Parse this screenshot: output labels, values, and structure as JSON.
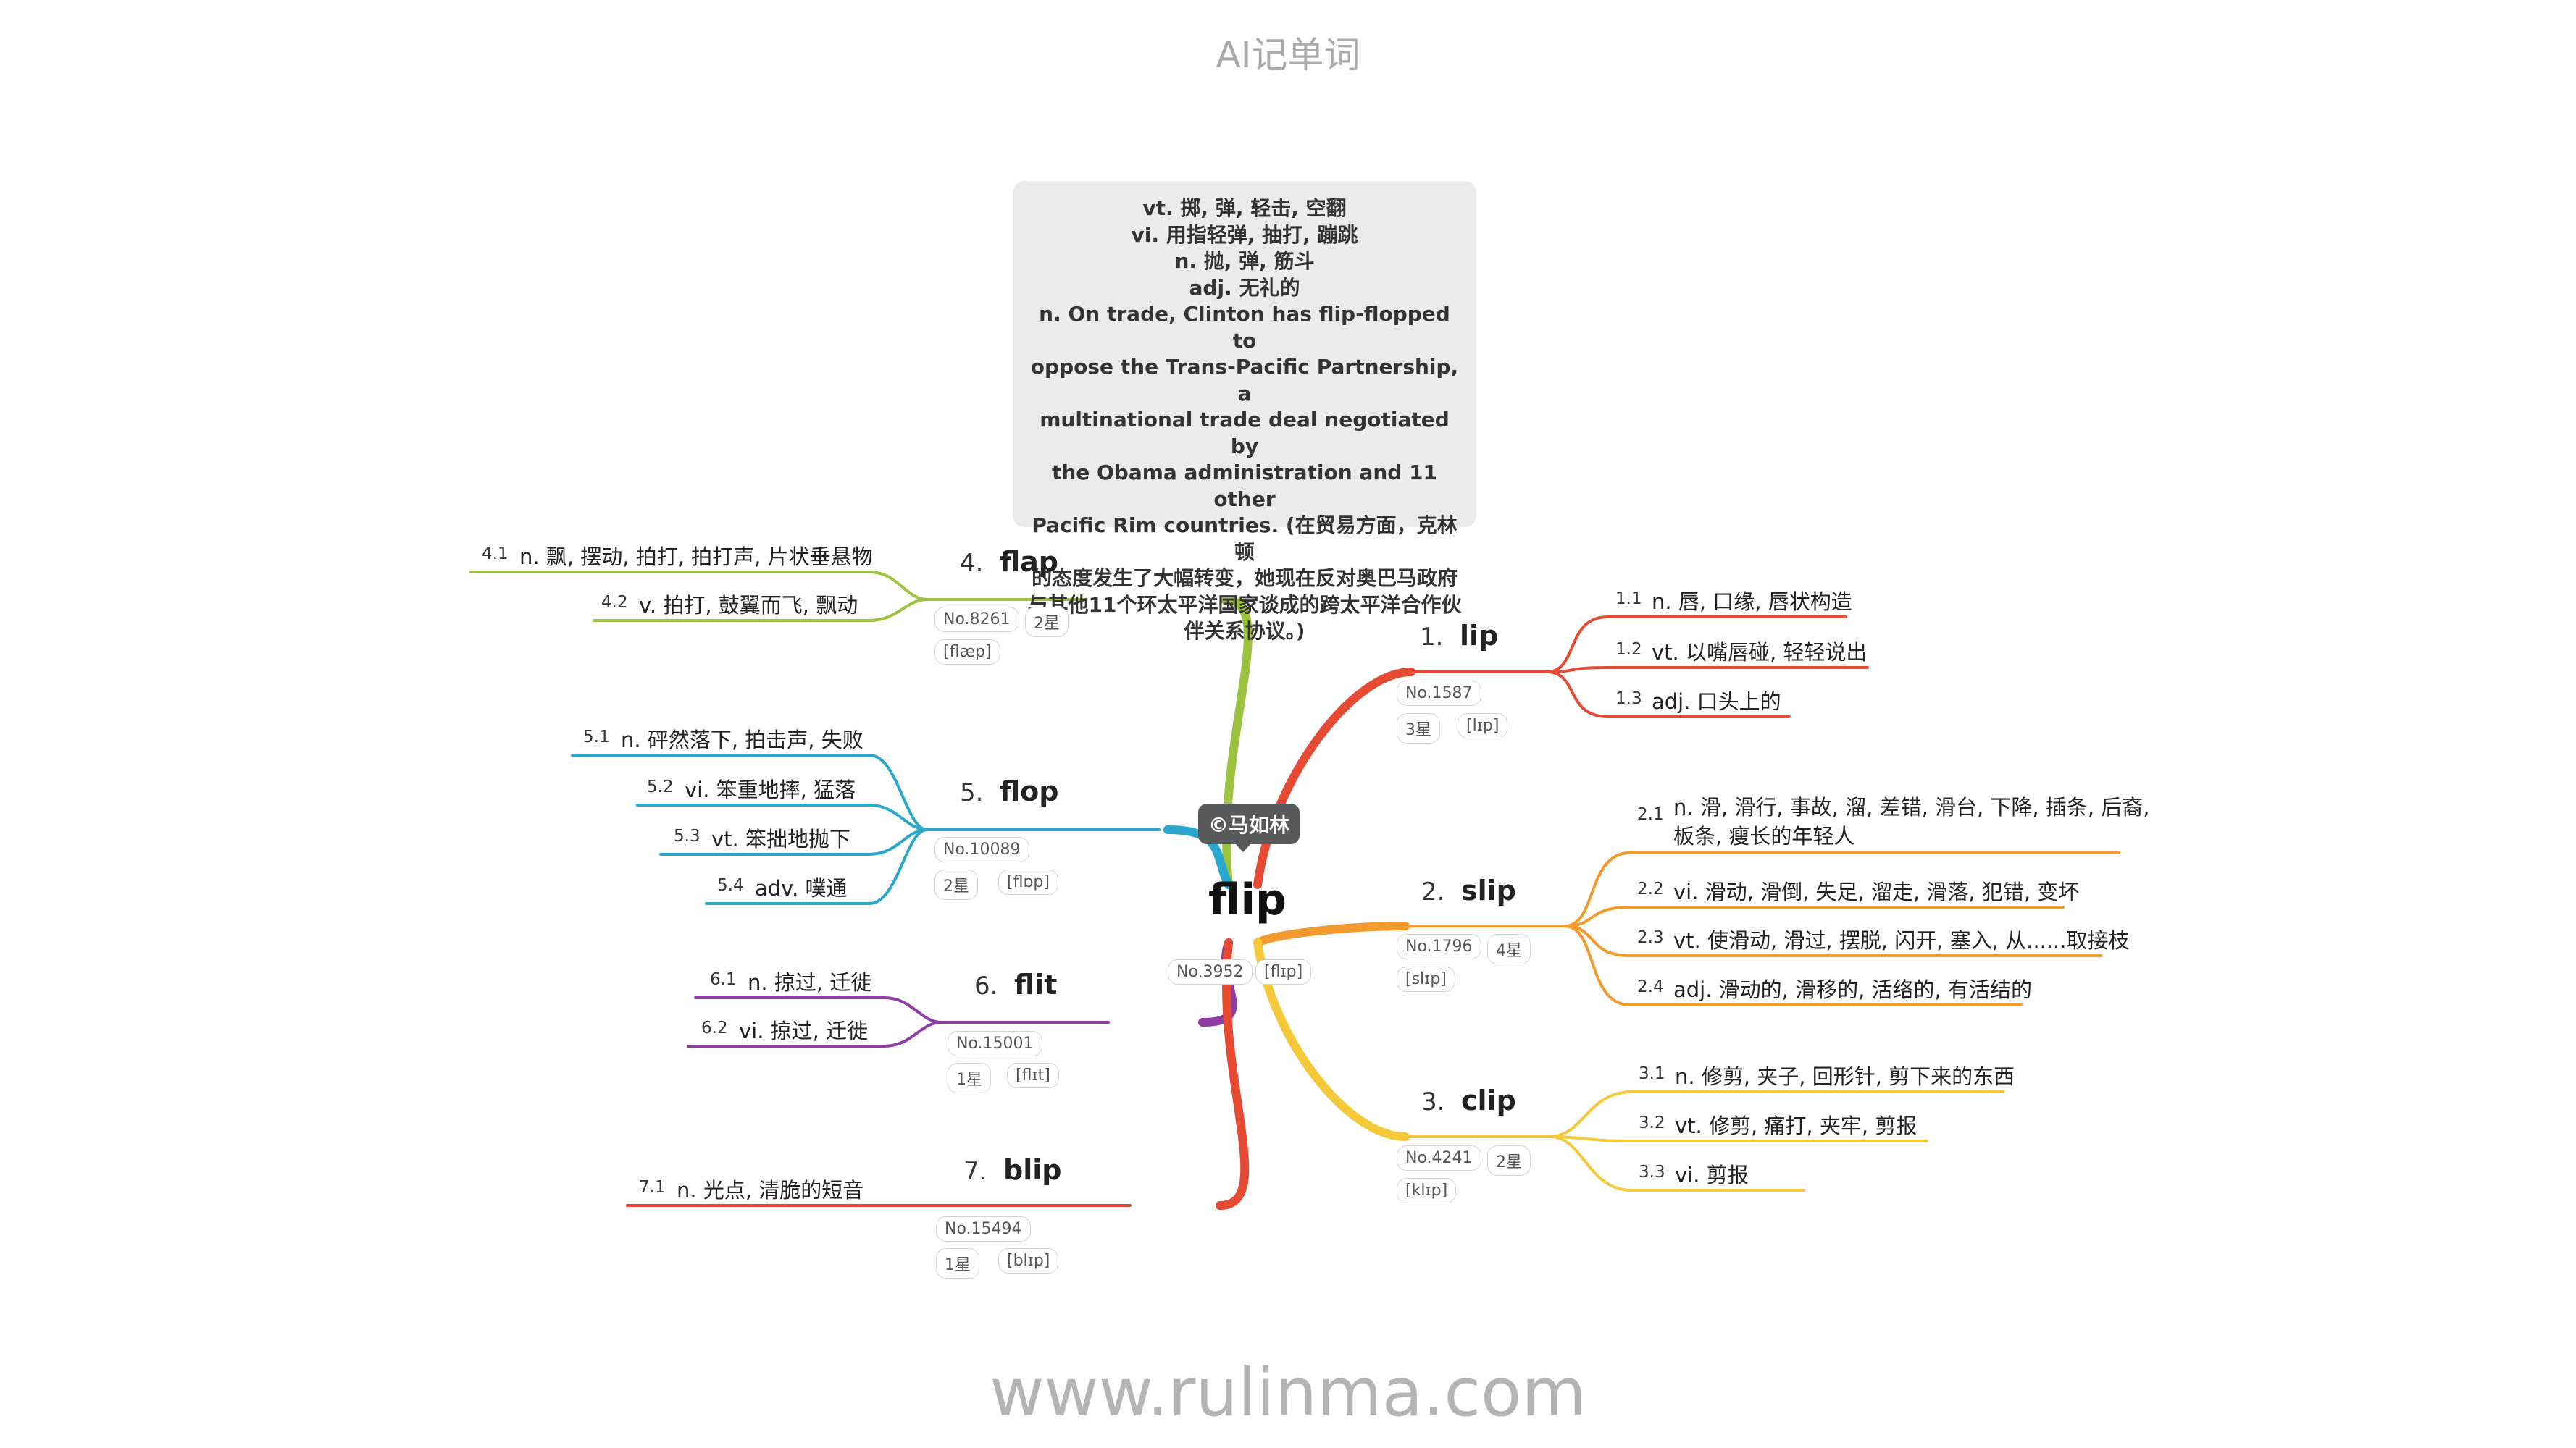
{
  "header_title": "AI记单词",
  "footer_url": "www.rulinma.com",
  "author_badge": "©马如林",
  "center": {
    "word": "flip",
    "meta": [
      "No.3952",
      "[flɪp]"
    ]
  },
  "note": {
    "lines": [
      "vt. 掷, 弹, 轻击, 空翻",
      "vi. 用指轻弹, 抽打, 蹦跳",
      "n. 抛, 弹, 筋斗",
      "adj. 无礼的",
      "n. On trade, Clinton has flip-flopped to",
      "oppose the Trans-Pacific Partnership, a",
      "multinational trade deal negotiated by",
      "the Obama administration and 11 other",
      "Pacific Rim countries. (在贸易方面，克林顿",
      "的态度发生了大幅转变，她现在反对奥巴马政府",
      "与其他11个环太平洋国家谈成的跨太平洋合作伙",
      "伴关系协议。)"
    ]
  },
  "branches": [
    {
      "num": "1.",
      "word": "lip",
      "color": "#e64a33",
      "meta": [
        "No.1587",
        "3星",
        "[lɪp]"
      ],
      "leaves": [
        {
          "n": "1.1",
          "text": "n. 唇, 口缘, 唇状构造"
        },
        {
          "n": "1.2",
          "text": "vt. 以嘴唇碰, 轻轻说出"
        },
        {
          "n": "1.3",
          "text": "adj. 口头上的"
        }
      ]
    },
    {
      "num": "2.",
      "word": "slip",
      "color": "#f39a2f",
      "meta": [
        "No.1796",
        "4星",
        "[slɪp]"
      ],
      "leaves": [
        {
          "n": "2.1",
          "text": "n. 滑, 滑行, 事故, 溜, 差错, 滑台, 下降, 插条, 后裔,",
          "text2": "板条, 瘦长的年轻人"
        },
        {
          "n": "2.2",
          "text": "vi. 滑动, 滑倒, 失足, 溜走, 滑落, 犯错, 变坏"
        },
        {
          "n": "2.3",
          "text": "vt. 使滑动, 滑过, 摆脱, 闪开, 塞入, 从......取接枝"
        },
        {
          "n": "2.4",
          "text": "adj. 滑动的, 滑移的, 活络的, 有活结的"
        }
      ]
    },
    {
      "num": "3.",
      "word": "clip",
      "color": "#f5c93a",
      "meta": [
        "No.4241",
        "2星",
        "[klɪp]"
      ],
      "leaves": [
        {
          "n": "3.1",
          "text": "n. 修剪, 夹子, 回形针, 剪下来的东西"
        },
        {
          "n": "3.2",
          "text": "vt. 修剪, 痛打, 夹牢, 剪报"
        },
        {
          "n": "3.3",
          "text": "vi. 剪报"
        }
      ]
    },
    {
      "num": "4.",
      "word": "flap",
      "color": "#9cc23f",
      "meta": [
        "No.8261",
        "2星",
        "[flæp]"
      ],
      "leaves": [
        {
          "n": "4.1",
          "text": "n. 飘, 摆动, 拍打, 拍打声, 片状垂悬物"
        },
        {
          "n": "4.2",
          "text": "v. 拍打, 鼓翼而飞, 飘动"
        }
      ]
    },
    {
      "num": "5.",
      "word": "flop",
      "color": "#2aa7cd",
      "meta": [
        "No.10089",
        "2星",
        "[flɒp]"
      ],
      "leaves": [
        {
          "n": "5.1",
          "text": "n. 砰然落下, 拍击声, 失败"
        },
        {
          "n": "5.2",
          "text": "vi. 笨重地摔, 猛落"
        },
        {
          "n": "5.3",
          "text": "vt. 笨拙地抛下"
        },
        {
          "n": "5.4",
          "text": "adv. 噗通"
        }
      ]
    },
    {
      "num": "6.",
      "word": "flit",
      "color": "#8e3ba3",
      "meta": [
        "No.15001",
        "1星",
        "[flɪt]"
      ],
      "leaves": [
        {
          "n": "6.1",
          "text": "n. 掠过, 迁徙"
        },
        {
          "n": "6.2",
          "text": "vi. 掠过, 迁徙"
        }
      ]
    },
    {
      "num": "7.",
      "word": "blip",
      "color": "#e64a33",
      "meta": [
        "No.15494",
        "1星",
        "[blɪp]"
      ],
      "leaves": [
        {
          "n": "7.1",
          "text": "n. 光点, 清脆的短音"
        }
      ]
    }
  ]
}
